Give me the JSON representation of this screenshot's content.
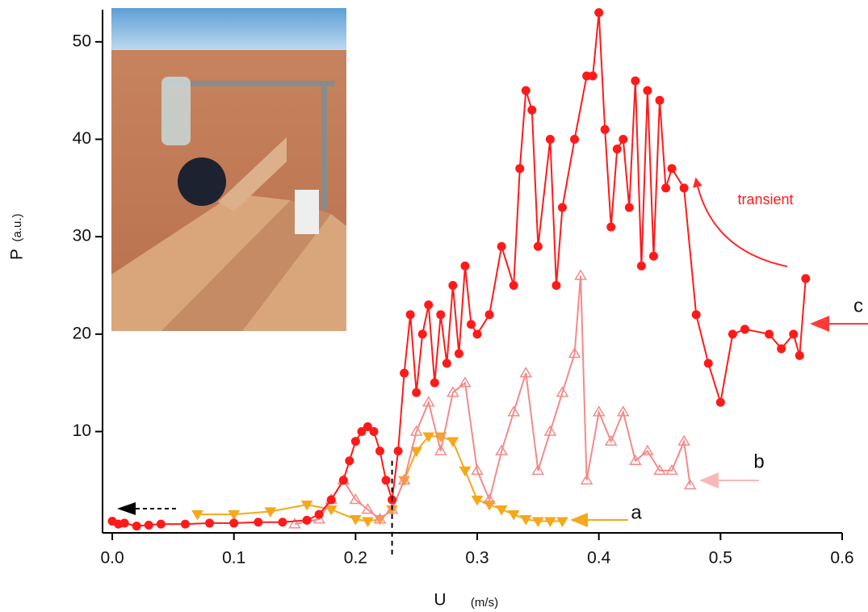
{
  "chart_data": {
    "type": "line",
    "xlabel": "U",
    "xunit": "(m/s)",
    "ylabel": "P",
    "yunit": "(a.u.)",
    "xlim": [
      -0.008,
      0.6
    ],
    "ylim": [
      -0.4,
      53.3
    ],
    "xticks": [
      {
        "value": 0,
        "label": "0.0"
      },
      0.1,
      0.2,
      0.3,
      0.4,
      0.5,
      0.6
    ],
    "yticks": [
      10,
      20,
      30,
      40,
      50
    ],
    "threshold": 0.23,
    "annotations": [
      "transient",
      "a",
      "b",
      "c"
    ],
    "series": [
      {
        "name": "a",
        "color": "#f5a81a",
        "marker": "triangle-down",
        "x": [
          0.07,
          0.1,
          0.13,
          0.16,
          0.18,
          0.2,
          0.21,
          0.22,
          0.23,
          0.24,
          0.25,
          0.26,
          0.27,
          0.28,
          0.29,
          0.3,
          0.31,
          0.32,
          0.33,
          0.34,
          0.35,
          0.36,
          0.37
        ],
        "values": [
          1.5,
          1.5,
          1.8,
          2.5,
          2,
          1,
          0.8,
          1,
          2,
          5,
          8,
          9.5,
          9.5,
          9,
          6,
          3,
          2.5,
          2,
          1.5,
          1,
          0.8,
          0.8,
          0.8
        ]
      },
      {
        "name": "b",
        "color": "#f48a8a",
        "marker": "triangle-up-open",
        "x": [
          0.15,
          0.17,
          0.18,
          0.19,
          0.2,
          0.21,
          0.22,
          0.23,
          0.24,
          0.25,
          0.26,
          0.27,
          0.28,
          0.29,
          0.3,
          0.31,
          0.32,
          0.33,
          0.34,
          0.35,
          0.36,
          0.37,
          0.38,
          0.385,
          0.39,
          0.4,
          0.41,
          0.42,
          0.43,
          0.44,
          0.45,
          0.46,
          0.47,
          0.475
        ],
        "values": [
          0.5,
          1,
          3,
          5,
          3,
          2,
          1,
          2,
          5,
          10,
          13,
          8,
          14,
          15,
          6,
          3,
          8,
          12,
          16,
          6,
          10,
          14,
          18,
          26,
          5,
          12,
          9,
          12,
          7,
          8,
          6,
          6,
          9,
          4.5
        ]
      },
      {
        "name": "c",
        "color": "#ff1a1a",
        "marker": "circle",
        "x": [
          0.0,
          0.005,
          0.01,
          0.02,
          0.03,
          0.04,
          0.06,
          0.08,
          0.1,
          0.12,
          0.14,
          0.16,
          0.17,
          0.18,
          0.19,
          0.195,
          0.2,
          0.205,
          0.21,
          0.215,
          0.22,
          0.225,
          0.23,
          0.235,
          0.24,
          0.245,
          0.25,
          0.255,
          0.26,
          0.265,
          0.27,
          0.275,
          0.28,
          0.285,
          0.29,
          0.295,
          0.3,
          0.31,
          0.32,
          0.33,
          0.335,
          0.34,
          0.345,
          0.35,
          0.36,
          0.365,
          0.37,
          0.38,
          0.39,
          0.395,
          0.4,
          0.405,
          0.41,
          0.415,
          0.42,
          0.425,
          0.43,
          0.435,
          0.44,
          0.445,
          0.45,
          0.455,
          0.46,
          0.47,
          0.48,
          0.49,
          0.5,
          0.51,
          0.52,
          0.54,
          0.55,
          0.56,
          0.565,
          0.57
        ],
        "values": [
          0.8,
          0.5,
          0.6,
          0.3,
          0.4,
          0.5,
          0.5,
          0.6,
          0.6,
          0.7,
          0.7,
          0.9,
          1.5,
          3,
          5,
          7,
          9,
          10,
          10.5,
          10,
          8,
          5,
          3,
          8,
          16,
          22,
          14,
          20,
          23,
          15,
          22,
          17,
          25,
          18,
          27,
          21,
          20,
          22,
          29,
          25,
          37,
          45,
          43,
          29,
          40,
          25,
          33,
          40,
          46.5,
          46.5,
          53,
          41,
          31,
          39,
          40,
          33,
          46,
          27,
          45,
          28,
          44,
          35,
          37,
          35,
          22,
          17,
          13,
          20,
          20.5,
          20,
          18.5,
          20,
          17.8,
          25.7
        ]
      }
    ]
  }
}
